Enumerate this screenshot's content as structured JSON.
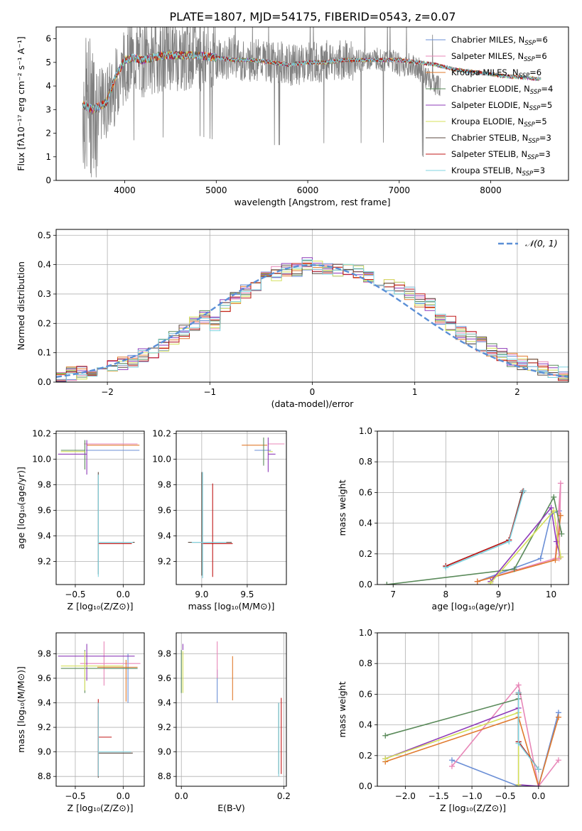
{
  "figure_title": "PLATE=1807, MJD=54175, FIBERID=0543, z=0.07",
  "series_colors": [
    "#6b8fd6",
    "#e887b8",
    "#e07a2e",
    "#5a8a5a",
    "#8e3bb8",
    "#d4e05a",
    "#5c4a40",
    "#c01818",
    "#7fd3e0"
  ],
  "chart_data": [
    {
      "id": "spectrum",
      "type": "line",
      "title": "PLATE=1807, MJD=54175, FIBERID=0543, z=0.07",
      "xlabel": "wavelength [Angstrom, rest frame]",
      "ylabel": "Flux [fλ10⁻¹⁷ erg cm⁻² s⁻¹ A⁻¹]",
      "xlim": [
        3250,
        8850
      ],
      "ylim": [
        0,
        6.5
      ],
      "xticks": [
        4000,
        5000,
        6000,
        7000,
        8000
      ],
      "yticks": [
        0,
        1,
        2,
        3,
        4,
        5,
        6
      ],
      "grid": false,
      "legend": "top-right",
      "data_trace": {
        "name": "",
        "color": "#808080",
        "x": [
          3540,
          3580,
          3620,
          3650,
          3700,
          3750,
          3800,
          3850,
          3900,
          3950,
          4000,
          4100,
          4200,
          4300,
          4400,
          4500,
          4600,
          4700,
          4800,
          4900,
          5000,
          5100,
          5200,
          5300,
          5400,
          5500,
          5600,
          5700,
          5800,
          5900,
          6000,
          6100,
          6200,
          6300,
          6400,
          6500,
          6600,
          6700,
          6800,
          6900,
          7000,
          7100,
          7200,
          7300,
          7400,
          7450
        ],
        "y": [
          3.3,
          3.1,
          3.2,
          3.0,
          3.1,
          3.2,
          3.3,
          3.6,
          4.0,
          4.4,
          4.9,
          5.2,
          5.1,
          5.2,
          5.3,
          5.4,
          5.3,
          5.4,
          5.4,
          5.3,
          5.2,
          5.1,
          5.3,
          5.0,
          5.1,
          5.1,
          5.0,
          5.0,
          4.9,
          4.9,
          5.0,
          5.0,
          5.1,
          5.1,
          5.1,
          5.0,
          5.1,
          5.2,
          5.1,
          5.1,
          4.9,
          4.9,
          4.8,
          4.3,
          4.1,
          4.0
        ]
      },
      "model_trace": {
        "x": [
          3540,
          3600,
          3650,
          3700,
          3800,
          3900,
          4000,
          4100,
          4200,
          4300,
          4400,
          4500,
          4600,
          4700,
          4800,
          5000,
          5200,
          5400,
          5600,
          5800,
          6000,
          6200,
          6400,
          6600,
          6800,
          7000,
          7200,
          7400,
          7600,
          7800,
          8000,
          8200,
          8400,
          8500
        ],
        "y": [
          3.2,
          3.1,
          3.0,
          3.1,
          3.3,
          4.4,
          5.1,
          5.2,
          5.1,
          5.2,
          5.3,
          5.3,
          5.3,
          5.3,
          5.3,
          5.2,
          5.1,
          5.1,
          5.0,
          4.9,
          5.0,
          5.0,
          5.1,
          5.1,
          5.1,
          5.1,
          5.0,
          4.9,
          4.7,
          4.6,
          4.5,
          4.4,
          4.35,
          4.3
        ]
      },
      "series": [
        {
          "name": "Chabrier MILES, N",
          "sub": "SSP",
          "suffix": "=6"
        },
        {
          "name": "Salpeter MILES, N",
          "sub": "SSP",
          "suffix": "=6"
        },
        {
          "name": "Kroupa MILES, N",
          "sub": "SSP",
          "suffix": "=6"
        },
        {
          "name": "Chabrier ELODIE, N",
          "sub": "SSP",
          "suffix": "=4"
        },
        {
          "name": "Salpeter ELODIE, N",
          "sub": "SSP",
          "suffix": "=5"
        },
        {
          "name": "Kroupa ELODIE, N",
          "sub": "SSP",
          "suffix": "=5"
        },
        {
          "name": "Chabrier STELIB, N",
          "sub": "SSP",
          "suffix": "=3"
        },
        {
          "name": "Salpeter STELIB, N",
          "sub": "SSP",
          "suffix": "=3"
        },
        {
          "name": "Kroupa STELIB, N",
          "sub": "SSP",
          "suffix": "=3"
        }
      ]
    },
    {
      "id": "residuals",
      "type": "histogram",
      "xlabel": "(data-model)/error",
      "ylabel": "Normed distribution",
      "xlim": [
        -2.5,
        2.5
      ],
      "ylim": [
        0,
        0.52
      ],
      "xticks": [
        -2,
        -1,
        0,
        1,
        2
      ],
      "yticks": [
        0.0,
        0.1,
        0.2,
        0.3,
        0.4,
        0.5
      ],
      "grid": true,
      "legend": "top-right",
      "gaussian_label": "𝒩(0, 1)",
      "bin_edges": [
        -2.5,
        -2.4,
        -2.3,
        -2.2,
        -2.1,
        -2.0,
        -1.9,
        -1.8,
        -1.7,
        -1.6,
        -1.5,
        -1.4,
        -1.3,
        -1.2,
        -1.1,
        -1.0,
        -0.9,
        -0.8,
        -0.7,
        -0.6,
        -0.5,
        -0.4,
        -0.3,
        -0.2,
        -0.1,
        0.0,
        0.1,
        0.2,
        0.3,
        0.4,
        0.5,
        0.6,
        0.7,
        0.8,
        0.9,
        1.0,
        1.1,
        1.2,
        1.3,
        1.4,
        1.5,
        1.6,
        1.7,
        1.8,
        1.9,
        2.0,
        2.1,
        2.2,
        2.3,
        2.4,
        2.5
      ],
      "base_counts": [
        0.022,
        0.027,
        0.032,
        0.04,
        0.05,
        0.056,
        0.062,
        0.07,
        0.09,
        0.105,
        0.125,
        0.15,
        0.17,
        0.2,
        0.22,
        0.2,
        0.26,
        0.29,
        0.31,
        0.33,
        0.36,
        0.37,
        0.38,
        0.38,
        0.4,
        0.39,
        0.38,
        0.38,
        0.39,
        0.38,
        0.36,
        0.35,
        0.33,
        0.32,
        0.3,
        0.28,
        0.26,
        0.22,
        0.2,
        0.17,
        0.15,
        0.13,
        0.11,
        0.09,
        0.075,
        0.065,
        0.055,
        0.045,
        0.035,
        0.03
      ]
    },
    {
      "id": "age_vs_Z",
      "type": "errorbar",
      "xlabel": "Z [log₁₀(Z/Z⊙)]",
      "ylabel": "age  [log₁₀(age/yr)]",
      "xlim": [
        -0.7,
        0.22
      ],
      "ylim": [
        9.02,
        10.22
      ],
      "xticks": [
        -0.5,
        0.0
      ],
      "yticks": [
        9.2,
        9.4,
        9.6,
        9.8,
        10.0,
        10.2
      ],
      "grid": true,
      "points": [
        {
          "s": 0,
          "x": -0.09,
          "y": 10.07,
          "xl": 0.3,
          "xh": 0.26,
          "yl": 0.0,
          "yh": 0.0
        },
        {
          "s": 1,
          "x": -0.11,
          "y": 10.12,
          "xl": 0.3,
          "xh": 0.26,
          "yl": 0.0,
          "yh": 0.0
        },
        {
          "s": 2,
          "x": -0.13,
          "y": 10.11,
          "xl": 0.25,
          "xh": 0.3,
          "yl": 0.0,
          "yh": 0.0
        },
        {
          "s": 3,
          "x": -0.4,
          "y": 10.07,
          "xl": 0.25,
          "xh": 0.0,
          "yl": 0.15,
          "yh": 0.08
        },
        {
          "s": 4,
          "x": -0.38,
          "y": 10.04,
          "xl": 0.3,
          "xh": 0.0,
          "yl": 0.16,
          "yh": 0.11
        },
        {
          "s": 5,
          "x": -0.4,
          "y": 10.06,
          "xl": 0.25,
          "xh": 0.0,
          "yl": 0.0,
          "yh": 0.0
        },
        {
          "s": 6,
          "x": -0.26,
          "y": 9.35,
          "xl": 0.0,
          "xh": 0.38,
          "yl": 0.25,
          "yh": 0.55
        },
        {
          "s": 7,
          "x": -0.26,
          "y": 9.34,
          "xl": 0.0,
          "xh": 0.35,
          "yl": 0.0,
          "yh": 0.0
        },
        {
          "s": 8,
          "x": -0.26,
          "y": 9.35,
          "xl": 0.0,
          "xh": 0.36,
          "yl": 0.27,
          "yh": 0.53
        }
      ]
    },
    {
      "id": "age_vs_mass",
      "type": "errorbar",
      "xlabel": "mass [log₁₀(M/M⊙)]",
      "ylabel": "",
      "xlim": [
        8.72,
        9.93
      ],
      "ylim": [
        9.02,
        10.22
      ],
      "xticks": [
        9.0,
        9.5
      ],
      "yticks": [
        9.2,
        9.4,
        9.6,
        9.8,
        10.0,
        10.2
      ],
      "grid": true,
      "points": [
        {
          "s": 0,
          "x": 9.66,
          "y": 10.07,
          "xl": 0.08,
          "xh": 0.1,
          "yl": 0.0,
          "yh": 0.0
        },
        {
          "s": 1,
          "x": 9.73,
          "y": 10.12,
          "xl": 0.0,
          "xh": 0.18,
          "yl": 0.0,
          "yh": 0.0
        },
        {
          "s": 2,
          "x": 9.62,
          "y": 10.11,
          "xl": 0.18,
          "xh": 0.1,
          "yl": 0.0,
          "yh": 0.0
        },
        {
          "s": 3,
          "x": 9.68,
          "y": 10.07,
          "xl": 0.0,
          "xh": 0.0,
          "yl": 0.12,
          "yh": 0.1
        },
        {
          "s": 4,
          "x": 9.73,
          "y": 10.04,
          "xl": 0.0,
          "xh": 0.08,
          "yl": 0.14,
          "yh": 0.13
        },
        {
          "s": 5,
          "x": 9.73,
          "y": 10.06,
          "xl": 0.0,
          "xh": 0.05,
          "yl": 0.0,
          "yh": 0.0
        },
        {
          "s": 6,
          "x": 9.0,
          "y": 9.35,
          "xl": 0.15,
          "xh": 0.33,
          "yl": 0.26,
          "yh": 0.55
        },
        {
          "s": 7,
          "x": 9.12,
          "y": 9.34,
          "xl": 0.12,
          "xh": 0.22,
          "yl": 0.26,
          "yh": 0.47
        },
        {
          "s": 8,
          "x": 9.01,
          "y": 9.35,
          "xl": 0.12,
          "xh": 0.26,
          "yl": 0.28,
          "yh": 0.55
        }
      ]
    },
    {
      "id": "weight_vs_age",
      "type": "line",
      "xlabel": "age  [log₁₀(age/yr)]",
      "ylabel": "mass weight",
      "xlim": [
        6.7,
        10.33
      ],
      "ylim": [
        0,
        1.0
      ],
      "xticks": [
        7,
        8,
        9,
        10
      ],
      "yticks": [
        0.0,
        0.2,
        0.4,
        0.6,
        0.8,
        1.0
      ],
      "grid": true,
      "lines": [
        {
          "s": 0,
          "x": [
            8.6,
            9.8,
            10.0,
            10.15
          ],
          "y": [
            0.02,
            0.17,
            0.46,
            0.48
          ]
        },
        {
          "s": 1,
          "x": [
            8.6,
            10.08,
            10.18,
            10.15
          ],
          "y": [
            0.02,
            0.17,
            0.66,
            0.17
          ]
        },
        {
          "s": 2,
          "x": [
            8.6,
            10.08,
            10.18
          ],
          "y": [
            0.02,
            0.16,
            0.45
          ]
        },
        {
          "s": 3,
          "x": [
            6.88,
            9.3,
            10.05,
            10.2
          ],
          "y": [
            0.0,
            0.1,
            0.57,
            0.33
          ]
        },
        {
          "s": 4,
          "x": [
            8.85,
            10.0,
            10.1,
            10.18
          ],
          "y": [
            0.02,
            0.5,
            0.28,
            0.18
          ]
        },
        {
          "s": 5,
          "x": [
            8.85,
            10.05,
            10.18
          ],
          "y": [
            0.01,
            0.48,
            0.18
          ]
        },
        {
          "s": 6,
          "x": [
            8.0,
            9.2,
            9.45
          ],
          "y": [
            0.12,
            0.29,
            0.6
          ]
        },
        {
          "s": 7,
          "x": [
            8.0,
            9.2,
            9.47
          ],
          "y": [
            0.12,
            0.29,
            0.61
          ]
        },
        {
          "s": 8,
          "x": [
            8.0,
            9.2,
            9.48
          ],
          "y": [
            0.11,
            0.28,
            0.61
          ]
        }
      ]
    },
    {
      "id": "mass_vs_Z",
      "type": "errorbar",
      "xlabel": "Z [log₁₀(Z/Z⊙)]",
      "ylabel": "mass [log₁₀(M/M⊙)]",
      "xlim": [
        -0.7,
        0.22
      ],
      "ylim": [
        8.72,
        9.97
      ],
      "xticks": [
        -0.5,
        0.0
      ],
      "yticks": [
        8.8,
        9.0,
        9.2,
        9.4,
        9.6,
        9.8
      ],
      "grid": true,
      "points": [
        {
          "s": 0,
          "x": 0.05,
          "y": 9.68,
          "xl": 0.25,
          "xh": 0.1,
          "yl": 0.28,
          "yh": 0.12
        },
        {
          "s": 1,
          "x": -0.2,
          "y": 9.72,
          "xl": 0.25,
          "xh": 0.38,
          "yl": 0.18,
          "yh": 0.18
        },
        {
          "s": 2,
          "x": 0.03,
          "y": 9.69,
          "xl": 0.3,
          "xh": 0.12,
          "yl": 0.28,
          "yh": 0.06
        },
        {
          "s": 3,
          "x": -0.4,
          "y": 9.68,
          "xl": 0.25,
          "xh": 0.55,
          "yl": 0.2,
          "yh": 0.15
        },
        {
          "s": 4,
          "x": -0.38,
          "y": 9.78,
          "xl": 0.3,
          "xh": 0.5,
          "yl": 0.2,
          "yh": 0.1
        },
        {
          "s": 5,
          "x": -0.4,
          "y": 9.7,
          "xl": 0.25,
          "xh": 0.4,
          "yl": 0.2,
          "yh": 0.12
        },
        {
          "s": 6,
          "x": -0.26,
          "y": 8.99,
          "xl": 0.0,
          "xh": 0.36,
          "yl": 0.2,
          "yh": 0.38
        },
        {
          "s": 7,
          "x": -0.26,
          "y": 9.12,
          "xl": 0.0,
          "xh": 0.14,
          "yl": 0.32,
          "yh": 0.31
        },
        {
          "s": 8,
          "x": -0.26,
          "y": 9.0,
          "xl": 0.0,
          "xh": 0.34,
          "yl": 0.2,
          "yh": 0.4
        }
      ]
    },
    {
      "id": "mass_vs_EBV",
      "type": "errorbar",
      "xlabel": "E(B-V)",
      "ylabel": "",
      "xlim": [
        -0.01,
        0.205
      ],
      "ylim": [
        8.72,
        9.97
      ],
      "xticks": [
        0.0,
        0.2
      ],
      "yticks": [
        8.8,
        9.0,
        9.2,
        9.4,
        9.6,
        9.8
      ],
      "grid": true,
      "points": [
        {
          "s": 0,
          "x": 0.07,
          "y": 9.55,
          "xl": 0.0,
          "xh": 0.0,
          "yl": 0.15,
          "yh": 0.12
        },
        {
          "s": 1,
          "x": 0.07,
          "y": 9.75,
          "xl": 0.0,
          "xh": 0.0,
          "yl": 0.15,
          "yh": 0.15
        },
        {
          "s": 2,
          "x": 0.1,
          "y": 9.6,
          "xl": 0.0,
          "xh": 0.0,
          "yl": 0.18,
          "yh": 0.18
        },
        {
          "s": 3,
          "x": 0.0,
          "y": 9.68,
          "xl": 0.0,
          "xh": 0.0,
          "yl": 0.2,
          "yh": 0.15
        },
        {
          "s": 4,
          "x": 0.003,
          "y": 9.83,
          "xl": 0.0,
          "xh": 0.0,
          "yl": 0.0,
          "yh": 0.05
        },
        {
          "s": 5,
          "x": 0.003,
          "y": 9.7,
          "xl": 0.0,
          "xh": 0.0,
          "yl": 0.22,
          "yh": 0.12
        },
        {
          "s": 6,
          "x": 0.19,
          "y": 9.1,
          "xl": 0.0,
          "xh": 0.0,
          "yl": 0.28,
          "yh": 0.3
        },
        {
          "s": 7,
          "x": 0.195,
          "y": 9.12,
          "xl": 0.0,
          "xh": 0.0,
          "yl": 0.3,
          "yh": 0.32
        },
        {
          "s": 8,
          "x": 0.19,
          "y": 9.1,
          "xl": 0.0,
          "xh": 0.0,
          "yl": 0.3,
          "yh": 0.3
        }
      ]
    },
    {
      "id": "weight_vs_Z",
      "type": "line",
      "xlabel": "Z [log₁₀(Z/Z⊙)]",
      "ylabel": "mass weight",
      "xlim": [
        -2.42,
        0.45
      ],
      "ylim": [
        0,
        1.0
      ],
      "xticks": [
        -2.0,
        -1.5,
        -1.0,
        -0.5,
        0.0
      ],
      "yticks": [
        0.0,
        0.2,
        0.4,
        0.6,
        0.8,
        1.0
      ],
      "grid": true,
      "lines": [
        {
          "s": 0,
          "x": [
            -1.3,
            -0.3,
            0.0,
            0.3
          ],
          "y": [
            0.17,
            0.0,
            0.0,
            0.48
          ]
        },
        {
          "s": 1,
          "x": [
            -1.3,
            -0.3,
            0.0,
            0.3
          ],
          "y": [
            0.13,
            0.66,
            0.0,
            0.17
          ]
        },
        {
          "s": 2,
          "x": [
            -2.3,
            -0.3,
            0.0,
            0.3
          ],
          "y": [
            0.16,
            0.45,
            0.0,
            0.45
          ]
        },
        {
          "s": 3,
          "x": [
            -2.3,
            -0.3,
            -0.3
          ],
          "y": [
            0.33,
            0.57,
            0.28
          ]
        },
        {
          "s": 4,
          "x": [
            -2.3,
            -0.3,
            -0.3,
            0.0
          ],
          "y": [
            0.18,
            0.51,
            0.01,
            0.0
          ]
        },
        {
          "s": 5,
          "x": [
            -2.3,
            -0.3,
            -0.3
          ],
          "y": [
            0.18,
            0.48,
            0.01
          ]
        },
        {
          "s": 6,
          "x": [
            -0.3,
            -0.3,
            0.0
          ],
          "y": [
            0.6,
            0.29,
            0.11
          ]
        },
        {
          "s": 7,
          "x": [
            -0.3,
            -0.3,
            0.0
          ],
          "y": [
            0.61,
            0.29,
            0.11
          ]
        },
        {
          "s": 8,
          "x": [
            -0.3,
            -0.3,
            0.0
          ],
          "y": [
            0.61,
            0.28,
            0.11
          ]
        }
      ]
    }
  ]
}
